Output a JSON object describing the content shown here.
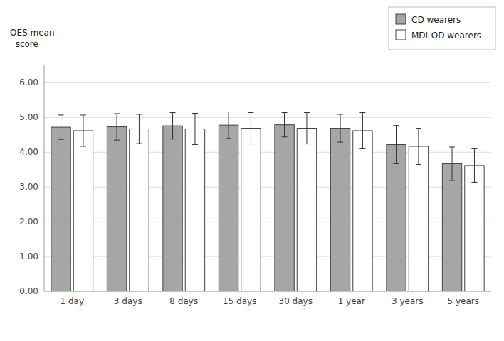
{
  "chart_data": {
    "type": "bar",
    "categories": [
      "1 day",
      "3 days",
      "8 days",
      "15 days",
      "30 days",
      "1 year",
      "3 years",
      "5 years"
    ],
    "series": [
      {
        "name": "CD wearers",
        "color": "#a6a6a6",
        "values": [
          4.72,
          4.73,
          4.76,
          4.78,
          4.79,
          4.69,
          4.22,
          3.67
        ],
        "errors": [
          0.35,
          0.38,
          0.38,
          0.38,
          0.35,
          0.4,
          0.55,
          0.48
        ]
      },
      {
        "name": "MDI-OD wearers",
        "color": "#ffffff",
        "values": [
          4.62,
          4.67,
          4.67,
          4.69,
          4.69,
          4.62,
          4.17,
          3.62
        ],
        "errors": [
          0.45,
          0.42,
          0.45,
          0.45,
          0.45,
          0.52,
          0.52,
          0.48
        ]
      }
    ],
    "y_label": [
      "OES mean",
      "  score"
    ],
    "ylim": [
      0.0,
      6.5
    ],
    "yticks": [
      {
        "value": 0.0,
        "label": "0.00"
      },
      {
        "value": 1.0,
        "label": "1.00"
      },
      {
        "value": 2.0,
        "label": "2.00"
      },
      {
        "value": 3.0,
        "label": "3.00"
      },
      {
        "value": 4.0,
        "label": "4.00"
      },
      {
        "value": 5.0,
        "label": "5.00"
      },
      {
        "value": 6.0,
        "label": "6.00"
      }
    ],
    "grid": true,
    "legend": "upper right"
  }
}
